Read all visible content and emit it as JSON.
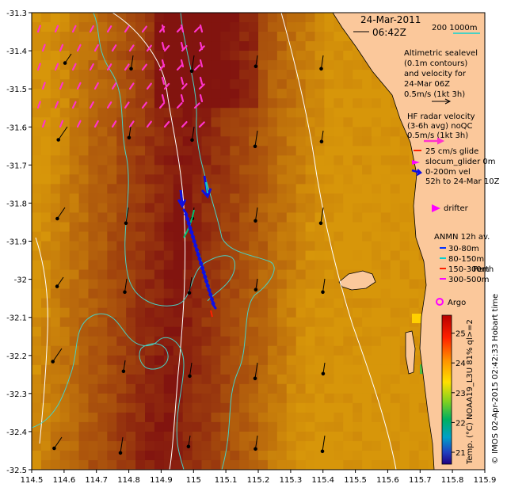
{
  "header": {
    "date": "24-Mar-2011",
    "time": "06:42Z",
    "scale_label": "200  1000m"
  },
  "axes": {
    "x_ticks": [
      "114.5",
      "114.6",
      "114.7",
      "114.8",
      "114.9",
      "115",
      "115.1",
      "115.2",
      "115.3",
      "115.4",
      "115.5",
      "115.6",
      "115.7",
      "115.8",
      "115.9"
    ],
    "y_ticks": [
      "-31.3",
      "-31.4",
      "-31.5",
      "-31.6",
      "-31.7",
      "-31.8",
      "-31.9",
      "-32",
      "-32.1",
      "-32.2",
      "-32.3",
      "-32.4",
      "-32.5"
    ],
    "xlim": [
      114.5,
      115.9
    ],
    "ylim": [
      -32.5,
      -31.3
    ]
  },
  "legend": {
    "altimetric": [
      "Altimetric sealevel",
      "(0.1m contours)",
      "and velocity for",
      "24-Mar 06Z",
      "0.5m/s (1kt 3h)"
    ],
    "hf_radar": [
      "HF radar velocity",
      "(3-6h avg) noQC",
      "0.5m/s (1kt 3h)"
    ],
    "glider": {
      "glide_25": "25 cm/s glide",
      "slocum": "slocum_glider 0m",
      "vel_0_200": "0-200m vel",
      "window": "52h to 24-Mar 10Z"
    },
    "drifter": "drifter",
    "anmn": {
      "title": "ANMN 12h av.",
      "d30_80": "30-80m",
      "d80_150": "80-150m",
      "d150_300": "150-300m",
      "d300_500": "300-500m"
    },
    "place_label": "Perth",
    "argo": "Argo"
  },
  "colorbar": {
    "ticks": [
      "25",
      "24",
      "23",
      "22",
      "21"
    ],
    "label": "Temp. (°C) NOAA19_L3U 81% ql>=2"
  },
  "credit": "© IMOS 02-Apr-2015 02:42:33 Hobart time",
  "colors": {
    "land": "#fbc89b",
    "contour": "#48d1c4",
    "hf_radar": "#ff33cc",
    "altimetry": "#000000",
    "glider_vel": "#1010e0",
    "glider_track": "#00c070",
    "anmn_30_80": "#0030ff",
    "anmn_80_150": "#00d0d0",
    "anmn_150_300": "#ff2000",
    "anmn_300_500": "#ff00ff"
  }
}
